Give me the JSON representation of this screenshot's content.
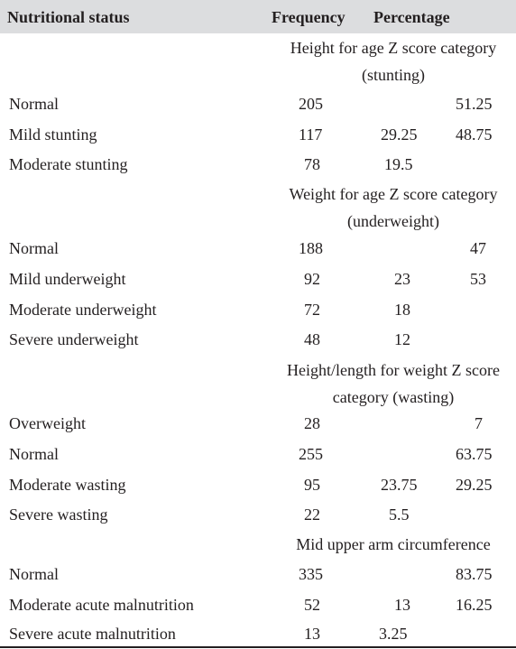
{
  "header": {
    "col1": "Nutritional status",
    "col2": "Frequency",
    "col3": "Percentage"
  },
  "sections": [
    {
      "title": "Height for age Z score category (stunting)",
      "rows": [
        {
          "label": "Normal",
          "frequency": "205",
          "pct": "",
          "total": "51.25"
        },
        {
          "label": "Mild stunting",
          "frequency": "117",
          "pct": "29.25",
          "total": "48.75"
        },
        {
          "label": "Moderate stunting",
          "frequency": "78",
          "pct": "19.5",
          "total": ""
        }
      ]
    },
    {
      "title": "Weight for age Z score category (underweight)",
      "rows": [
        {
          "label": "Normal",
          "frequency": "188",
          "pct": "",
          "total": "47"
        },
        {
          "label": "Mild underweight",
          "frequency": "92",
          "pct": "23",
          "total": "53"
        },
        {
          "label": "Moderate underweight",
          "frequency": "72",
          "pct": "18",
          "total": ""
        },
        {
          "label": "Severe underweight",
          "frequency": "48",
          "pct": "12",
          "total": ""
        }
      ]
    },
    {
      "title": "Height/length for weight Z score category (wasting)",
      "rows": [
        {
          "label": "Overweight",
          "frequency": "28",
          "pct": "",
          "total": "7"
        },
        {
          "label": "Normal",
          "frequency": "255",
          "pct": "",
          "total": "63.75"
        },
        {
          "label": "Moderate wasting",
          "frequency": "95",
          "pct": "23.75",
          "total": "29.25"
        },
        {
          "label": "Severe wasting",
          "frequency": "22",
          "pct": "5.5",
          "total": ""
        }
      ]
    },
    {
      "title": "Mid upper arm circumference",
      "rows": [
        {
          "label": "Normal",
          "frequency": "335",
          "pct": "",
          "total": "83.75"
        },
        {
          "label": "Moderate acute malnutrition",
          "frequency": "52",
          "pct": "13",
          "total": "16.25"
        },
        {
          "label": "Severe acute malnutrition",
          "frequency": "13",
          "pct": "3.25",
          "total": ""
        }
      ]
    }
  ]
}
